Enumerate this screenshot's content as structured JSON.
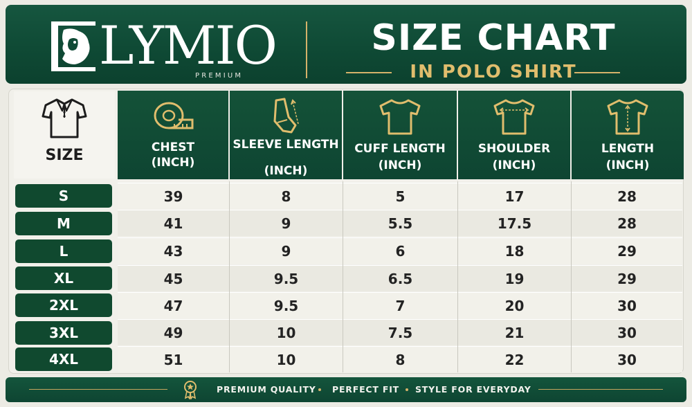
{
  "header": {
    "brand": "LYMIO",
    "brand_sub": "PREMIUM",
    "title": "SIZE CHART",
    "subtitle": "IN POLO SHIRT",
    "logo_icon": "lion-head-icon",
    "accent_color": "#d5b26a",
    "brand_color": "#0f4a35"
  },
  "table": {
    "size_header": "SIZE",
    "columns": [
      {
        "title": "CHEST",
        "unit": "(INCH)",
        "icon": "measuring-tape-icon"
      },
      {
        "title": "SLEEVE LENGTH",
        "unit": "(INCH)",
        "icon": "sleeve-icon"
      },
      {
        "title": "CUFF LENGTH",
        "unit": "(INCH)",
        "icon": "tshirt-icon"
      },
      {
        "title": "SHOULDER",
        "unit": "(INCH)",
        "icon": "tshirt-shoulder-icon"
      },
      {
        "title": "LENGTH",
        "unit": "(INCH)",
        "icon": "tshirt-length-icon"
      }
    ],
    "rows": [
      {
        "size": "S",
        "values": [
          "39",
          "8",
          "5",
          "17",
          "28"
        ]
      },
      {
        "size": "M",
        "values": [
          "41",
          "9",
          "5.5",
          "17.5",
          "28"
        ]
      },
      {
        "size": "L",
        "values": [
          "43",
          "9",
          "6",
          "18",
          "29"
        ]
      },
      {
        "size": "XL",
        "values": [
          "45",
          "9.5",
          "6.5",
          "19",
          "29"
        ]
      },
      {
        "size": "2XL",
        "values": [
          "47",
          "9.5",
          "7",
          "20",
          "30"
        ]
      },
      {
        "size": "3XL",
        "values": [
          "49",
          "10",
          "7.5",
          "21",
          "30"
        ]
      },
      {
        "size": "4XL",
        "values": [
          "51",
          "10",
          "8",
          "22",
          "30"
        ]
      }
    ]
  },
  "footer": {
    "items": [
      "PREMIUM QUALITY",
      "PERFECT FIT",
      "STYLE FOR EVERYDAY"
    ],
    "icon": "medal-icon"
  }
}
